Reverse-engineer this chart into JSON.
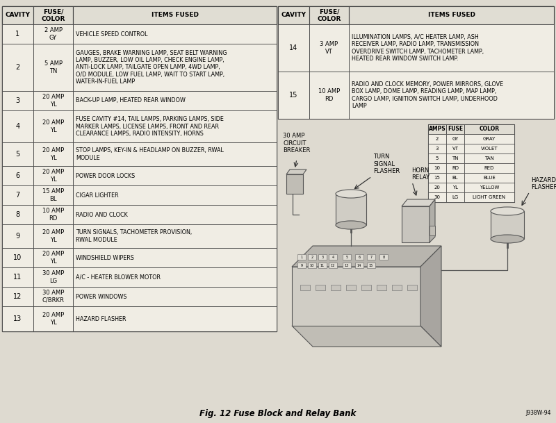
{
  "title": "Fig. 12 Fuse Block and Relay Bank",
  "figure_id": "J938W-94",
  "bg_color": "#dedad0",
  "left_table": {
    "headers": [
      "CAVITY",
      "FUSE/\nCOLOR",
      "ITEMS FUSED"
    ],
    "rows": [
      [
        "1",
        "2 AMP\nGY",
        "VEHICLE SPEED CONTROL"
      ],
      [
        "2",
        "5 AMP\nTN",
        "GAUGES, BRAKE WARNING LAMP, SEAT BELT WARNING\nLAMP, BUZZER, LOW OIL LAMP, CHECK ENGINE LAMP,\nANTI-LOCK LAMP, TAILGATE OPEN LAMP, 4WD LAMP,\nO/D MODULE, LOW FUEL LAMP, WAIT TO START LAMP,\nWATER-IN-FUEL LAMP"
      ],
      [
        "3",
        "20 AMP\nYL",
        "BACK-UP LAMP, HEATED REAR WINDOW"
      ],
      [
        "4",
        "20 AMP\nYL",
        "FUSE CAVITY #14, TAIL LAMPS, PARKING LAMPS, SIDE\nMARKER LAMPS, LICENSE LAMPS, FRONT AND REAR\nCLEARANCE LAMPS, RADIO INTENSITY, HORNS"
      ],
      [
        "5",
        "20 AMP\nYL",
        "STOP LAMPS, KEY-IN & HEADLAMP ON BUZZER, RWAL\nMODULE"
      ],
      [
        "6",
        "20 AMP\nYL",
        "POWER DOOR LOCKS"
      ],
      [
        "7",
        "15 AMP\nBL",
        "CIGAR LIGHTER"
      ],
      [
        "8",
        "10 AMP\nRD",
        "RADIO AND CLOCK"
      ],
      [
        "9",
        "20 AMP\nYL",
        "TURN SIGNALS, TACHOMETER PROVISION,\nRWAL MODULE"
      ],
      [
        "10",
        "20 AMP\nYL",
        "WINDSHIELD WIPERS"
      ],
      [
        "11",
        "30 AMP\nLG",
        "A/C - HEATER BLOWER MOTOR"
      ],
      [
        "12",
        "30 AMP\nC/BRKR",
        "POWER WINDOWS"
      ],
      [
        "13",
        "20 AMP\nYL",
        "HAZARD FLASHER"
      ]
    ]
  },
  "right_table": {
    "headers": [
      "CAVITY",
      "FUSE/\nCOLOR",
      "ITEMS FUSED"
    ],
    "rows": [
      [
        "14",
        "3 AMP\nVT",
        "ILLUMINATION LAMPS, A/C HEATER LAMP, ASH\nRECEIVER LAMP, RADIO LAMP, TRANSMISSION\nOVERDRIVE SWITCH LAMP, TACHOMETER LAMP,\nHEATED REAR WINDOW SWITCH LAMP."
      ],
      [
        "15",
        "10 AMP\nRD",
        "RADIO AND CLOCK MEMORY, POWER MIRRORS, GLOVE\nBOX LAMP, DOME LAMP, READING LAMP, MAP LAMP,\nCARGO LAMP, IGNITION SWITCH LAMP, UNDERHOOD\nLAMP"
      ]
    ]
  },
  "color_table": {
    "headers": [
      "AMPS",
      "FUSE",
      "COLOR"
    ],
    "rows": [
      [
        "2",
        "GY",
        "GRAY"
      ],
      [
        "3",
        "VT",
        "VIOLET"
      ],
      [
        "5",
        "TN",
        "TAN"
      ],
      [
        "10",
        "RD",
        "RED"
      ],
      [
        "15",
        "BL",
        "BLUE"
      ],
      [
        "20",
        "YL",
        "YELLOW"
      ],
      [
        "30",
        "LG",
        "LIGHT GREEN"
      ]
    ]
  },
  "diagram_labels": {
    "turn_signal_flasher": "TURN\nSIGNAL\nFLASHER",
    "horn_relay": "HORN\nRELAY",
    "hazard_flasher": "HAZARD\nFLASHER",
    "circuit_breaker": "30 AMP\nCIRCUIT\nBREAKER"
  }
}
